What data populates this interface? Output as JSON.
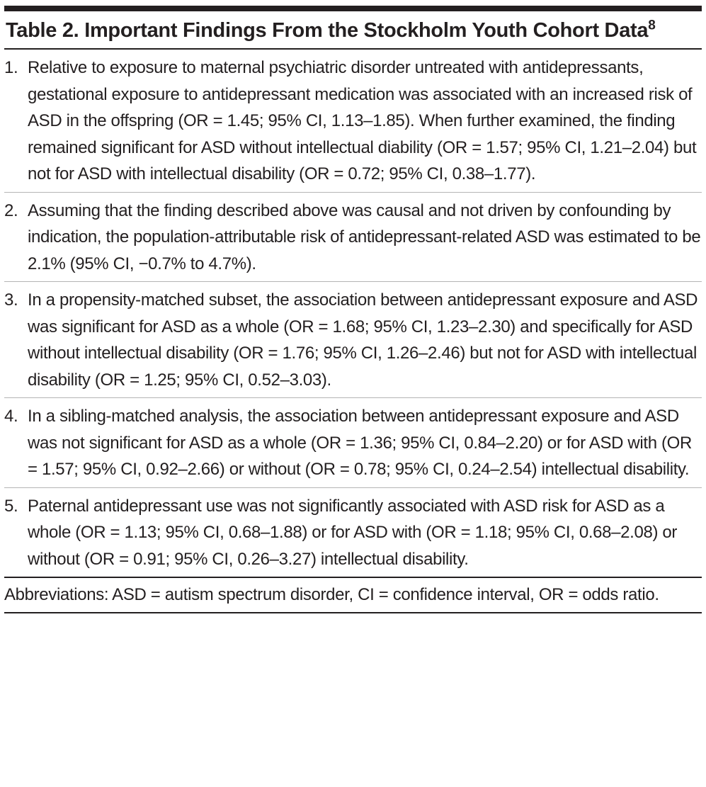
{
  "header": {
    "title": "Table 2. Important Findings From the Stockholm Youth Cohort Data",
    "superscript": "8"
  },
  "items": [
    {
      "number": "1.",
      "text": "Relative to exposure to maternal psychiatric disorder untreated with antidepressants, gestational exposure to antidepressant medication was associated with an increased risk of ASD in the offspring (OR = 1.45; 95% CI, 1.13–1.85). When further examined, the finding remained significant for ASD without intellectual diability (OR = 1.57; 95% CI, 1.21–2.04) but not for ASD with intellectual disability (OR = 0.72; 95% CI, 0.38–1.77)."
    },
    {
      "number": "2.",
      "text": "Assuming that the finding described above was causal and not driven by confounding by indication, the population-attributable risk of antidepressant-related ASD was estimated to be 2.1% (95% CI, −0.7% to 4.7%)."
    },
    {
      "number": "3.",
      "text": "In a propensity-matched subset, the association between antidepressant exposure and ASD was significant for ASD as a whole (OR = 1.68; 95% CI, 1.23–2.30) and specifically for ASD without intellectual disability (OR = 1.76; 95% CI, 1.26–2.46) but not for ASD with intellectual disability (OR = 1.25; 95% CI, 0.52–3.03)."
    },
    {
      "number": "4.",
      "text": "In a sibling-matched analysis, the association between antidepressant exposure and ASD was not significant for ASD as a whole (OR = 1.36; 95% CI, 0.84–2.20) or for ASD with (OR = 1.57; 95% CI, 0.92–2.66) or without (OR = 0.78; 95% CI, 0.24–2.54) intellectual disability."
    },
    {
      "number": "5.",
      "text": "Paternal antidepressant use was not significantly associated with ASD risk for ASD as a whole (OR = 1.13; 95% CI, 0.68–1.88) or for ASD with (OR = 1.18; 95% CI, 0.68–2.08) or without (OR = 0.91; 95% CI, 0.26–3.27) intellectual disability."
    }
  ],
  "footnote": "Abbreviations: ASD = autism spectrum disorder, CI = confidence interval, OR = odds ratio."
}
